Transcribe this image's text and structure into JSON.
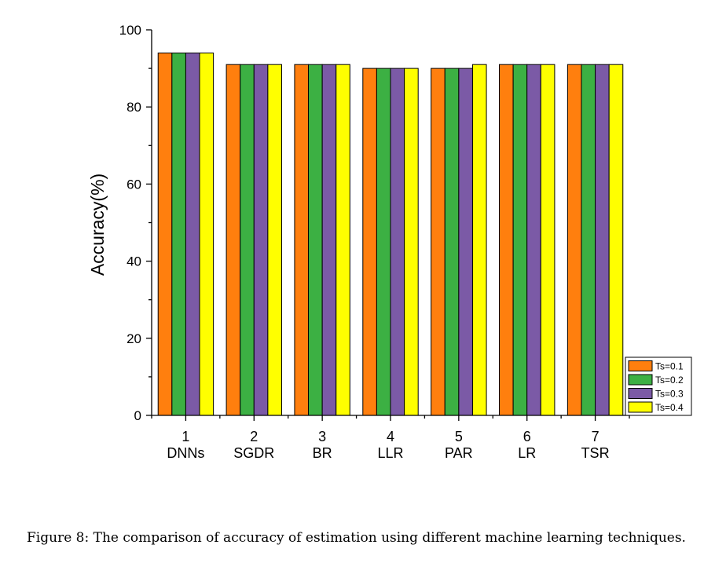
{
  "chart_data": {
    "type": "bar",
    "categories": [
      "1",
      "2",
      "3",
      "4",
      "5",
      "6",
      "7"
    ],
    "category_names": [
      "DNNs",
      "SGDR",
      "BR",
      "LLR",
      "PAR",
      "LR",
      "TSR"
    ],
    "ylabel": "Accuracy(%)",
    "xlabel": "",
    "ylim": [
      0,
      100
    ],
    "yticks": [
      0,
      20,
      40,
      60,
      80,
      100
    ],
    "legend_position": "bottom-right",
    "series": [
      {
        "name": "Ts=0.1",
        "color": "#ff7f0e",
        "values": [
          94,
          91,
          91,
          90,
          90,
          91,
          91
        ]
      },
      {
        "name": "Ts=0.2",
        "color": "#3cb043",
        "values": [
          94,
          91,
          91,
          90,
          90,
          91,
          91
        ]
      },
      {
        "name": "Ts=0.3",
        "color": "#7b5aa6",
        "values": [
          94,
          91,
          91,
          90,
          90,
          91,
          91
        ]
      },
      {
        "name": "Ts=0.4",
        "color": "#ffff00",
        "values": [
          94,
          91,
          91,
          90,
          91,
          91,
          91
        ]
      }
    ]
  },
  "caption": "Figure 8:  The comparison of accuracy of estimation using different machine learning techniques."
}
